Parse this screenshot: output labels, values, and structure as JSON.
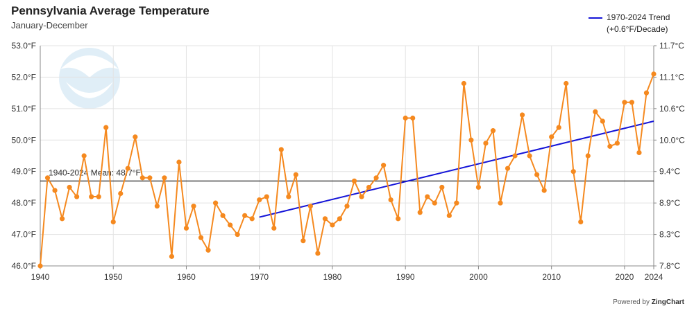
{
  "chart_data": {
    "type": "line",
    "title": "Pennsylvania Average Temperature",
    "subtitle": "January-December",
    "x_range": [
      1940,
      2024
    ],
    "x_ticks": [
      "1940",
      "1950",
      "1960",
      "1970",
      "1980",
      "1990",
      "2000",
      "2010",
      "2020",
      "2024"
    ],
    "y_range_f": [
      46.0,
      53.0
    ],
    "y_ticks_left": [
      "46.0°F",
      "47.0°F",
      "48.0°F",
      "49.0°F",
      "50.0°F",
      "51.0°F",
      "52.0°F",
      "53.0°F"
    ],
    "y_ticks_right": [
      "7.8°C",
      "8.3°C",
      "8.9°C",
      "9.4°C",
      "10.0°C",
      "10.6°C",
      "11.1°C",
      "11.7°C"
    ],
    "grid": true,
    "legend_position": "top-right",
    "series": [
      {
        "values": [
          [
            1940,
            46.0
          ],
          [
            1941,
            48.8
          ],
          [
            1942,
            48.4
          ],
          [
            1943,
            47.5
          ],
          [
            1944,
            48.5
          ],
          [
            1945,
            48.2
          ],
          [
            1946,
            49.5
          ],
          [
            1947,
            48.2
          ],
          [
            1948,
            48.2
          ],
          [
            1949,
            50.4
          ],
          [
            1950,
            47.4
          ],
          [
            1951,
            48.3
          ],
          [
            1952,
            49.1
          ],
          [
            1953,
            50.1
          ],
          [
            1954,
            48.8
          ],
          [
            1955,
            48.8
          ],
          [
            1956,
            47.9
          ],
          [
            1957,
            48.8
          ],
          [
            1958,
            46.3
          ],
          [
            1959,
            49.3
          ],
          [
            1960,
            47.2
          ],
          [
            1961,
            47.9
          ],
          [
            1962,
            46.9
          ],
          [
            1963,
            46.5
          ],
          [
            1964,
            48.0
          ],
          [
            1965,
            47.6
          ],
          [
            1966,
            47.3
          ],
          [
            1967,
            47.0
          ],
          [
            1968,
            47.6
          ],
          [
            1969,
            47.5
          ],
          [
            1970,
            48.1
          ],
          [
            1971,
            48.2
          ],
          [
            1972,
            47.2
          ],
          [
            1973,
            49.7
          ],
          [
            1974,
            48.2
          ],
          [
            1975,
            48.9
          ],
          [
            1976,
            46.8
          ],
          [
            1977,
            47.9
          ],
          [
            1978,
            46.4
          ],
          [
            1979,
            47.5
          ],
          [
            1980,
            47.3
          ],
          [
            1981,
            47.5
          ],
          [
            1982,
            47.9
          ],
          [
            1983,
            48.7
          ],
          [
            1984,
            48.2
          ],
          [
            1985,
            48.5
          ],
          [
            1986,
            48.8
          ],
          [
            1987,
            49.2
          ],
          [
            1988,
            48.1
          ],
          [
            1989,
            47.5
          ],
          [
            1990,
            50.7
          ],
          [
            1991,
            50.7
          ],
          [
            1992,
            47.7
          ],
          [
            1993,
            48.2
          ],
          [
            1994,
            48.0
          ],
          [
            1995,
            48.5
          ],
          [
            1996,
            47.6
          ],
          [
            1997,
            48.0
          ],
          [
            1998,
            51.8
          ],
          [
            1999,
            50.0
          ],
          [
            2000,
            48.5
          ],
          [
            2001,
            49.9
          ],
          [
            2002,
            50.3
          ],
          [
            2003,
            48.0
          ],
          [
            2004,
            49.1
          ],
          [
            2005,
            49.5
          ],
          [
            2006,
            50.8
          ],
          [
            2007,
            49.5
          ],
          [
            2008,
            48.9
          ],
          [
            2009,
            48.4
          ],
          [
            2010,
            50.1
          ],
          [
            2011,
            50.4
          ],
          [
            2012,
            51.8
          ],
          [
            2013,
            49.0
          ],
          [
            2014,
            47.4
          ],
          [
            2015,
            49.5
          ],
          [
            2016,
            50.9
          ],
          [
            2017,
            50.6
          ],
          [
            2018,
            49.8
          ],
          [
            2019,
            49.9
          ],
          [
            2020,
            51.2
          ],
          [
            2021,
            51.2
          ],
          [
            2022,
            49.6
          ],
          [
            2023,
            51.5
          ],
          [
            2024,
            52.1
          ]
        ],
        "color": "#f5891f"
      }
    ],
    "trend": {
      "name": "1970-2024 Trend",
      "rate": "(+0.6°F/Decade)",
      "start": [
        1970,
        47.55
      ],
      "end": [
        2024,
        50.6
      ],
      "color": "#1414d8"
    },
    "mean": {
      "label": "1940-2024 Mean: 48.7°F",
      "value": 48.7,
      "color": "#222222"
    }
  },
  "footer": {
    "powered_prefix": "Powered by ",
    "powered_brand": "ZingChart"
  },
  "logo_icon": "noaa-logo-icon"
}
